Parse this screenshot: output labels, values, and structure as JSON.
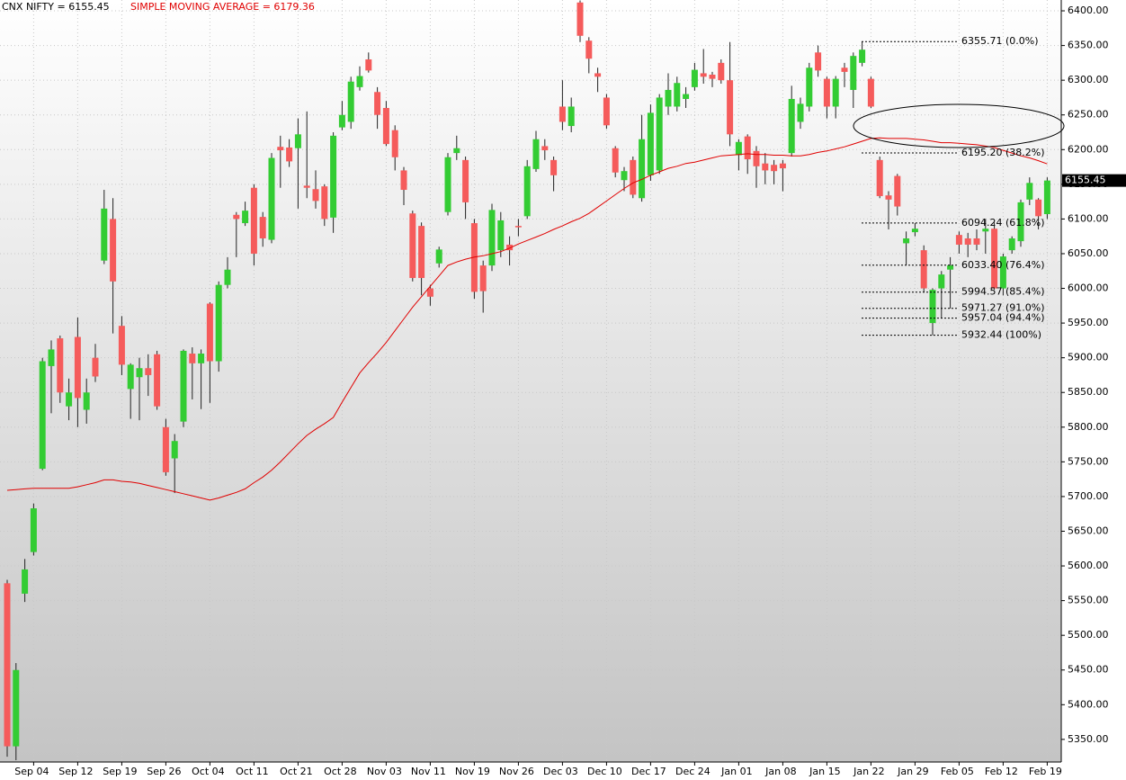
{
  "chart_data": {
    "type": "candlestick",
    "title": "CNX NIFTY = 6155.45",
    "subtitle": "SIMPLE MOVING AVERAGE = 6179.36",
    "categories": [
      null,
      null,
      null,
      "Sep 04",
      null,
      null,
      null,
      null,
      "Sep 12",
      null,
      null,
      null,
      null,
      "Sep 19",
      null,
      null,
      null,
      null,
      "Sep 26",
      null,
      null,
      null,
      null,
      "Oct 04",
      null,
      null,
      null,
      null,
      "Oct 11",
      null,
      null,
      null,
      null,
      "Oct 21",
      null,
      null,
      null,
      null,
      "Oct 28",
      null,
      null,
      null,
      null,
      "Nov 03",
      null,
      null,
      null,
      null,
      "Nov 11",
      null,
      null,
      null,
      null,
      "Nov 19",
      null,
      null,
      null,
      null,
      "Nov 26",
      null,
      null,
      null,
      null,
      "Dec 03",
      null,
      null,
      null,
      null,
      "Dec 10",
      null,
      null,
      null,
      null,
      "Dec 17",
      null,
      null,
      null,
      null,
      "Dec 24",
      null,
      null,
      null,
      null,
      "Jan 01",
      null,
      null,
      null,
      null,
      "Jan 08",
      null,
      null,
      null,
      null,
      "Jan 15",
      null,
      null,
      null,
      null,
      "Jan 22",
      null,
      null,
      null,
      null,
      "Jan 29",
      null,
      null,
      null,
      null,
      "Feb 05",
      null,
      null,
      null,
      null,
      "Feb 12",
      null,
      null,
      null,
      null,
      "Feb 19"
    ],
    "open": [
      5575,
      5340,
      5560,
      5620,
      5740,
      5888,
      5928,
      5830,
      5930,
      5825,
      5900,
      6040,
      6100,
      5946,
      5855,
      5872,
      5885,
      5905,
      5800,
      5755,
      5808,
      5906,
      5892,
      5978,
      5895,
      6005,
      6106,
      6094,
      6145,
      6103,
      6070,
      6204,
      6203,
      6202,
      6148,
      6143,
      6147,
      6102,
      6232,
      6240,
      6290,
      6330,
      6283,
      6260,
      6228,
      6170,
      6108,
      6090,
      6000,
      6036,
      6110,
      6195,
      6185,
      6094,
      6033,
      6033,
      6055,
      6063,
      6090,
      6104,
      6172,
      6205,
      6185,
      6262,
      6234,
      6412,
      6357,
      6310,
      6275,
      6202,
      6156,
      6185,
      6130,
      6163,
      6170,
      6262,
      6262,
      6273,
      6290,
      6310,
      6308,
      6325,
      6300,
      6192,
      6219,
      6198,
      6180,
      6178,
      6180,
      6195,
      6240,
      6262,
      6340,
      6302,
      6262,
      6318,
      6286,
      6325,
      6302,
      6185,
      6134,
      6162,
      6065,
      6081,
      6055,
      5950,
      6000,
      6027,
      6077,
      6072,
      6072,
      6082,
      6086,
      6000,
      6055,
      6068,
      6128,
      6128,
      6107
    ],
    "high": [
      5580,
      5460,
      5610,
      5690,
      5900,
      5925,
      5932,
      5870,
      5958,
      5870,
      5920,
      6142,
      6130,
      5960,
      5892,
      5900,
      5905,
      5910,
      5812,
      5790,
      5912,
      5915,
      5912,
      5980,
      6010,
      6045,
      6110,
      6125,
      6150,
      6110,
      6195,
      6220,
      6215,
      6245,
      6255,
      6170,
      6150,
      6225,
      6270,
      6305,
      6320,
      6340,
      6290,
      6270,
      6235,
      6175,
      6112,
      6095,
      6005,
      6060,
      6195,
      6220,
      6190,
      6100,
      6040,
      6122,
      6110,
      6075,
      6100,
      6185,
      6227,
      6215,
      6190,
      6300,
      6275,
      6415,
      6362,
      6318,
      6280,
      6205,
      6175,
      6190,
      6250,
      6265,
      6280,
      6310,
      6305,
      6290,
      6325,
      6345,
      6312,
      6330,
      6355,
      6215,
      6222,
      6205,
      6195,
      6185,
      6185,
      6292,
      6275,
      6325,
      6350,
      6305,
      6306,
      6325,
      6340,
      6355.71,
      6305,
      6190,
      6140,
      6165,
      6082,
      6094.24,
      6062,
      6000,
      6025,
      6045,
      6082,
      6080,
      6085,
      6100,
      6095,
      6050,
      6075,
      6128,
      6160,
      6130,
      6160
    ],
    "low": [
      5325,
      5320,
      5548,
      5615,
      5738,
      5820,
      5835,
      5810,
      5800,
      5805,
      5865,
      6035,
      5935,
      5875,
      5812,
      5810,
      5845,
      5825,
      5730,
      5705,
      5800,
      5840,
      5826,
      5835,
      5880,
      6000,
      6045,
      6090,
      6033,
      6060,
      6065,
      6145,
      6175,
      6115,
      6130,
      6115,
      6090,
      6080,
      6228,
      6230,
      6285,
      6311,
      6230,
      6205,
      6170,
      6120,
      6010,
      5990,
      5975,
      6030,
      6105,
      6185,
      6100,
      5985,
      5965,
      6025,
      6045,
      6033,
      6075,
      6100,
      6168,
      6185,
      6140,
      6228,
      6225,
      6355,
      6310,
      6283,
      6230,
      6160,
      6140,
      6130,
      6125,
      6155,
      6165,
      6250,
      6255,
      6260,
      6285,
      6295,
      6290,
      6295,
      6205,
      6170,
      6165,
      6145,
      6150,
      6150,
      6140,
      6190,
      6230,
      6255,
      6305,
      6245,
      6245,
      6290,
      6260,
      6320,
      6260,
      6130,
      6085,
      6105,
      6033,
      6075,
      5994,
      5932.44,
      5957,
      5971,
      6050,
      6045,
      6055,
      6050,
      5998,
      5990,
      6050,
      6060,
      6120,
      6085,
      6100
    ],
    "close": [
      5340,
      5450,
      5595,
      5683,
      5895,
      5912,
      5850,
      5850,
      5842,
      5850,
      5873,
      6115,
      6010,
      5890,
      5890,
      5885,
      5875,
      5830,
      5735,
      5780,
      5910,
      5892,
      5906,
      5895,
      6005,
      6027,
      6100,
      6112,
      6050,
      6072,
      6188,
      6199,
      6183,
      6222,
      6145,
      6126,
      6100,
      6220,
      6250,
      6298,
      6306,
      6314,
      6250,
      6208,
      6189,
      6142,
      6015,
      6015,
      5988,
      6056,
      6189,
      6202,
      6124,
      5995,
      5996,
      6113,
      6098,
      6055,
      6088,
      6176,
      6215,
      6199,
      6163,
      6240,
      6262,
      6364,
      6331,
      6305,
      6235,
      6167,
      6169,
      6135,
      6215,
      6253,
      6275,
      6286,
      6296,
      6280,
      6315,
      6305,
      6302,
      6300,
      6222,
      6211,
      6186,
      6176,
      6170,
      6169,
      6173,
      6273,
      6266,
      6318,
      6314,
      6262,
      6302,
      6312,
      6335,
      6344,
      6262,
      6133,
      6128,
      6118,
      6072,
      6086,
      6000,
      5998,
      6020,
      6033,
      6063,
      6063,
      6063,
      6086,
      6000,
      6046,
      6072,
      6124,
      6152,
      6104,
      6155.45
    ],
    "up_color": "#33cc33",
    "down_color": "#f55b5b",
    "moving_average": {
      "color": "#e00000",
      "values": [
        5709,
        5710,
        5711,
        5712,
        5712,
        5712,
        5712,
        5712,
        5714,
        5717,
        5720,
        5724,
        5724,
        5722,
        5721,
        5719,
        5716,
        5713,
        5710,
        5707,
        5704,
        5701,
        5698,
        5695,
        5698,
        5702,
        5706,
        5711,
        5720,
        5728,
        5738,
        5750,
        5763,
        5776,
        5788,
        5797,
        5805,
        5814,
        5836,
        5857,
        5878,
        5893,
        5907,
        5922,
        5939,
        5956,
        5973,
        5988,
        6003,
        6018,
        6033,
        6038,
        6042,
        6045,
        6047,
        6050,
        6053,
        6058,
        6064,
        6069,
        6074,
        6079,
        6085,
        6090,
        6096,
        6101,
        6108,
        6117,
        6126,
        6135,
        6144,
        6152,
        6157,
        6163,
        6168,
        6173,
        6176,
        6180,
        6182,
        6185,
        6188,
        6191,
        6192,
        6193,
        6194,
        6193,
        6193,
        6192,
        6192,
        6191,
        6191,
        6193,
        6196,
        6198,
        6201,
        6204,
        6208,
        6212,
        6216,
        6217,
        6216,
        6216,
        6216,
        6215,
        6214,
        6212,
        6210,
        6210,
        6209,
        6208,
        6207,
        6205,
        6203,
        6199,
        6195,
        6191,
        6188,
        6184,
        6179.36
      ]
    },
    "fib_levels": [
      {
        "value": 6355.71,
        "label": "6355.71 (0.0%)"
      },
      {
        "value": 6195.2,
        "label": "6195.20 (38.2%)"
      },
      {
        "value": 6094.24,
        "label": "6094.24 (61.8%)"
      },
      {
        "value": 6033.4,
        "label": "6033.40 (76.4%)"
      },
      {
        "value": 5994.57,
        "label": "5994.57 (85.4%)"
      },
      {
        "value": 5971.27,
        "label": "5971.27 (91.0%)"
      },
      {
        "value": 5957.04,
        "label": "5957.04 (94.4%)"
      },
      {
        "value": 5932.44,
        "label": "5932.44 (100%)"
      }
    ],
    "last_price": {
      "value": 6155.45,
      "label": "6155.45"
    },
    "ylim": [
      5320,
      6415.6
    ],
    "yticks": [
      {
        "value": 5350,
        "label": "5350.00"
      },
      {
        "value": 5400,
        "label": "5400.00"
      },
      {
        "value": 5450,
        "label": "5450.00"
      },
      {
        "value": 5500,
        "label": "5500.00"
      },
      {
        "value": 5550,
        "label": "5550.00"
      },
      {
        "value": 5600,
        "label": "5600.00"
      },
      {
        "value": 5650,
        "label": "5650.00"
      },
      {
        "value": 5700,
        "label": "5700.00"
      },
      {
        "value": 5750,
        "label": "5750.00"
      },
      {
        "value": 5800,
        "label": "5800.00"
      },
      {
        "value": 5850,
        "label": "5850.00"
      },
      {
        "value": 5900,
        "label": "5900.00"
      },
      {
        "value": 5950,
        "label": "5950.00"
      },
      {
        "value": 6000,
        "label": "6000.00"
      },
      {
        "value": 6050,
        "label": "6050.00"
      },
      {
        "value": 6100,
        "label": "6100.00"
      },
      {
        "value": 6150,
        "label": "6150.00"
      },
      {
        "value": 6200,
        "label": "6200.00"
      },
      {
        "value": 6250,
        "label": "6250.00"
      },
      {
        "value": 6300,
        "label": "6300.00"
      },
      {
        "value": 6350,
        "label": "6350.00"
      },
      {
        "value": 6400,
        "label": "6400.00"
      }
    ],
    "grid": true
  }
}
